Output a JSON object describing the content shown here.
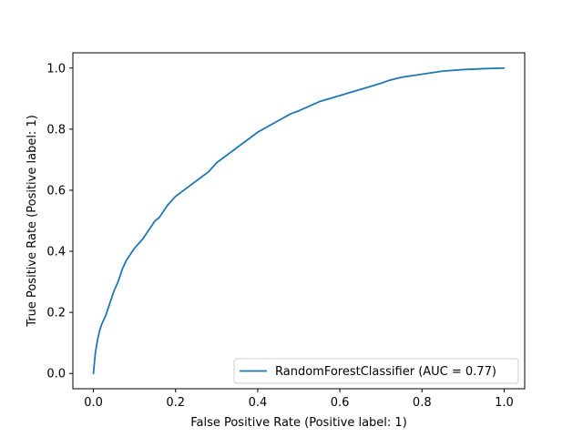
{
  "chart_data": {
    "type": "line",
    "title": "",
    "xlabel": "False Positive Rate (Positive label: 1)",
    "ylabel": "True Positive Rate (Positive label: 1)",
    "xlim": [
      -0.05,
      1.05
    ],
    "ylim": [
      -0.05,
      1.05
    ],
    "xticks": [
      0.0,
      0.2,
      0.4,
      0.6,
      0.8,
      1.0
    ],
    "xtick_labels": [
      "0.0",
      "0.2",
      "0.4",
      "0.6",
      "0.8",
      "1.0"
    ],
    "yticks": [
      0.0,
      0.2,
      0.4,
      0.6,
      0.8,
      1.0
    ],
    "ytick_labels": [
      "0.0",
      "0.2",
      "0.4",
      "0.6",
      "0.8",
      "1.0"
    ],
    "grid": false,
    "legend": {
      "position": "lower-right"
    },
    "series": [
      {
        "name": "RandomForestClassifier (AUC = 0.77)",
        "color": "#1f77b4",
        "x": [
          0.0,
          0.002,
          0.005,
          0.01,
          0.015,
          0.02,
          0.03,
          0.04,
          0.05,
          0.06,
          0.07,
          0.08,
          0.09,
          0.1,
          0.12,
          0.14,
          0.15,
          0.16,
          0.18,
          0.2,
          0.22,
          0.25,
          0.28,
          0.3,
          0.33,
          0.36,
          0.4,
          0.44,
          0.48,
          0.5,
          0.55,
          0.6,
          0.65,
          0.7,
          0.72,
          0.75,
          0.8,
          0.85,
          0.9,
          0.95,
          1.0
        ],
        "y": [
          0.0,
          0.03,
          0.07,
          0.11,
          0.14,
          0.16,
          0.19,
          0.23,
          0.27,
          0.3,
          0.34,
          0.37,
          0.39,
          0.41,
          0.44,
          0.48,
          0.5,
          0.51,
          0.55,
          0.58,
          0.6,
          0.63,
          0.66,
          0.69,
          0.72,
          0.75,
          0.79,
          0.82,
          0.85,
          0.86,
          0.89,
          0.91,
          0.93,
          0.95,
          0.96,
          0.97,
          0.98,
          0.99,
          0.995,
          0.998,
          1.0
        ]
      }
    ]
  }
}
